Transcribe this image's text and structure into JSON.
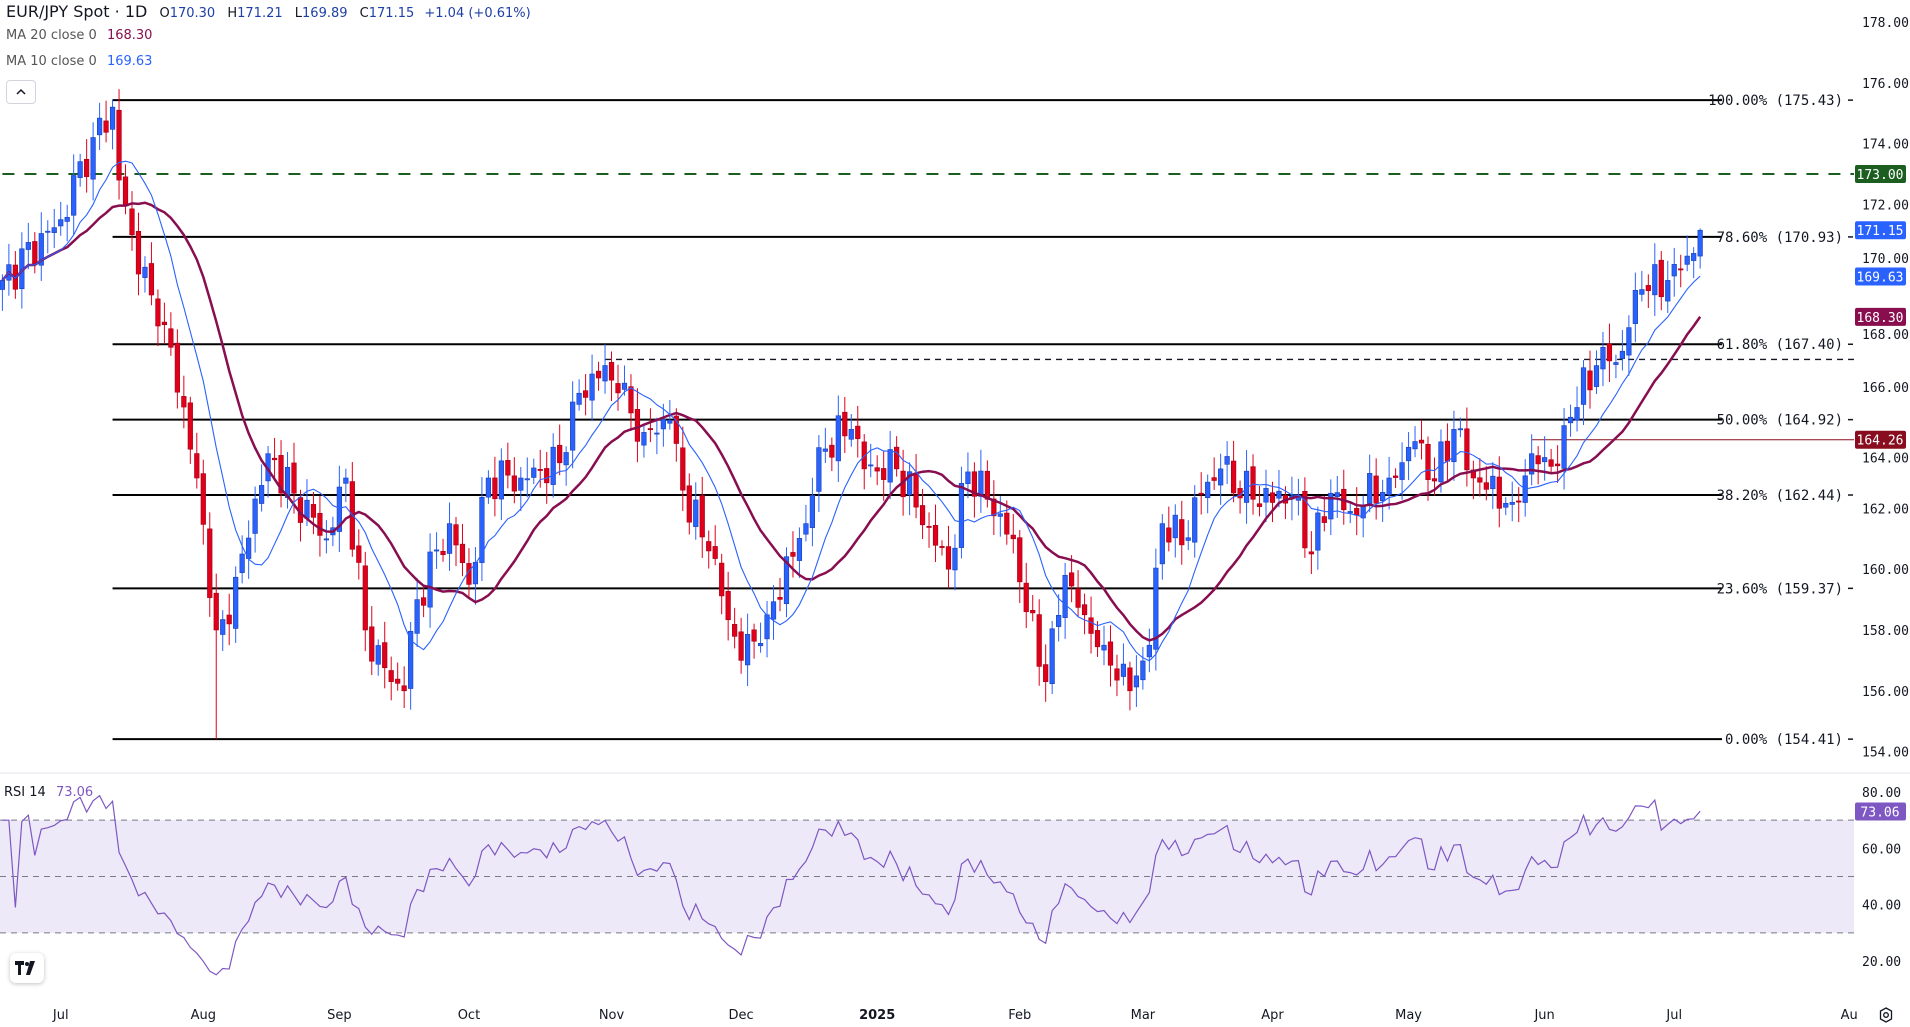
{
  "header": {
    "symbol_title": "EUR/JPY Spot · 1D",
    "open_label": "O",
    "open": "170.30",
    "high_label": "H",
    "high": "171.21",
    "low_label": "L",
    "low": "169.89",
    "close_label": "C",
    "close": "171.15",
    "change": "+1.04 (+0.61%)"
  },
  "indicators": {
    "ma20": {
      "label": "MA 20 close 0",
      "value": "168.30",
      "color": "#880e4f"
    },
    "ma10": {
      "label": "MA 10 close 0",
      "value": "169.63",
      "color": "#2962ff"
    },
    "rsi": {
      "label": "RSI 14",
      "value": "73.06",
      "color": "#7e57c2"
    }
  },
  "logo_text": "TV",
  "icons": {
    "collapse": "chevron-up-icon",
    "settings": "gear-icon",
    "logo": "tradingview-logo-icon"
  },
  "chart_data": {
    "type": "candlestick",
    "title": "EUR/JPY Spot · 1D",
    "ylim": [
      153.2,
      178.6
    ],
    "y_ticks": [
      "178.00",
      "176.00",
      "174.00",
      "172.00",
      "170.00",
      "168.00",
      "166.00",
      "164.00",
      "162.00",
      "160.00",
      "158.00",
      "156.00",
      "154.00"
    ],
    "y_tick_values": [
      178,
      176,
      174,
      172,
      170,
      168,
      166,
      164,
      162,
      160,
      158,
      156,
      154
    ],
    "x_ticks": [
      {
        "label": "Jul",
        "index": 9
      },
      {
        "label": "Aug",
        "index": 31
      },
      {
        "label": "Sep",
        "index": 52
      },
      {
        "label": "Oct",
        "index": 72
      },
      {
        "label": "Nov",
        "index": 94
      },
      {
        "label": "Dec",
        "index": 114
      },
      {
        "label": "2025",
        "index": 135
      },
      {
        "label": "Feb",
        "index": 157
      },
      {
        "label": "Mar",
        "index": 176
      },
      {
        "label": "Apr",
        "index": 196
      },
      {
        "label": "May",
        "index": 217
      },
      {
        "label": "Jun",
        "index": 238
      },
      {
        "label": "Jul",
        "index": 258
      },
      {
        "label": "Au",
        "index": 285
      }
    ],
    "candle_count": 263,
    "close_anchors": [
      [
        0,
        169.5
      ],
      [
        9,
        171.5
      ],
      [
        14,
        174.2
      ],
      [
        17,
        175.2
      ],
      [
        18,
        172.8
      ],
      [
        20,
        171.0
      ],
      [
        24,
        168.0
      ],
      [
        26,
        167.3
      ],
      [
        30,
        163.0
      ],
      [
        33,
        158.0
      ],
      [
        35,
        158.2
      ],
      [
        37,
        160.5
      ],
      [
        41,
        163.8
      ],
      [
        45,
        162.5
      ],
      [
        50,
        161.0
      ],
      [
        53,
        163.0
      ],
      [
        56,
        158.0
      ],
      [
        60,
        156.3
      ],
      [
        62,
        156.0
      ],
      [
        64,
        159.0
      ],
      [
        69,
        161.5
      ],
      [
        72,
        159.5
      ],
      [
        75,
        163.0
      ],
      [
        80,
        163.0
      ],
      [
        86,
        163.5
      ],
      [
        88,
        165.5
      ],
      [
        93,
        166.7
      ],
      [
        95,
        165.8
      ],
      [
        99,
        164.5
      ],
      [
        103,
        164.9
      ],
      [
        105,
        162.6
      ],
      [
        109,
        160.6
      ],
      [
        114,
        157.0
      ],
      [
        118,
        158.5
      ],
      [
        124,
        161.5
      ],
      [
        126,
        164.0
      ],
      [
        131,
        164.6
      ],
      [
        133,
        163.3
      ],
      [
        138,
        163.3
      ],
      [
        143,
        161.4
      ],
      [
        146,
        160.0
      ],
      [
        149,
        163.2
      ],
      [
        152,
        162.3
      ],
      [
        156,
        161.0
      ],
      [
        158,
        158.6
      ],
      [
        161,
        156.3
      ],
      [
        164,
        159.8
      ],
      [
        167,
        158.5
      ],
      [
        170,
        157.5
      ],
      [
        174,
        156.0
      ],
      [
        177,
        157.5
      ],
      [
        179,
        161.5
      ],
      [
        182,
        160.8
      ],
      [
        185,
        162.5
      ],
      [
        188,
        163.3
      ],
      [
        193,
        162.3
      ],
      [
        199,
        162.4
      ],
      [
        202,
        160.5
      ],
      [
        205,
        162.5
      ],
      [
        208,
        161.9
      ],
      [
        214,
        163.0
      ],
      [
        218,
        164.2
      ],
      [
        221,
        162.9
      ],
      [
        224,
        164.6
      ],
      [
        227,
        163.0
      ],
      [
        233,
        162.2
      ],
      [
        236,
        163.8
      ],
      [
        240,
        163.4
      ],
      [
        242,
        165.0
      ],
      [
        247,
        167.3
      ],
      [
        249,
        166.8
      ],
      [
        253,
        169.2
      ],
      [
        257,
        169.5
      ],
      [
        260,
        170.3
      ],
      [
        262,
        171.15
      ]
    ],
    "last_candle": {
      "open": 170.3,
      "high": 171.21,
      "low": 169.89,
      "close": 171.15
    },
    "special_wicks": [
      {
        "index": 33,
        "low": 154.41
      }
    ],
    "series": [
      {
        "name": "MA 20 close 0",
        "period": 20,
        "last": 168.3
      },
      {
        "name": "MA 10 close 0",
        "period": 10,
        "last": 169.63
      }
    ],
    "fib_levels": [
      {
        "label": "100.00% (175.43)",
        "value": 175.43
      },
      {
        "label": "78.60% (170.93)",
        "value": 170.93
      },
      {
        "label": "61.80% (167.40)",
        "value": 167.4
      },
      {
        "label": "50.00% (164.92)",
        "value": 164.92
      },
      {
        "label": "38.20% (162.44)",
        "value": 162.44
      },
      {
        "label": "23.60% (159.37)",
        "value": 159.37
      },
      {
        "label": "0.00% (154.41)",
        "value": 154.41
      }
    ],
    "fib_start_index": 17,
    "horizontal_lines": [
      {
        "name": "resistance-173",
        "value": 173.0,
        "style": "dashed",
        "color": "#1b5e20",
        "badge": "173.00",
        "start_index": 0
      },
      {
        "name": "prior-high",
        "value": 166.9,
        "style": "dotted",
        "color": "#131722",
        "start_index": 93
      },
      {
        "name": "support-164",
        "value": 164.26,
        "style": "solid",
        "color": "#880e1f",
        "badge": "164.26",
        "start_index": 236
      }
    ],
    "price_badges": [
      {
        "text": "171.15",
        "value": 171.15,
        "color": "#2962ff"
      },
      {
        "text": "169.63",
        "value": 169.63,
        "color": "#2962ff"
      },
      {
        "text": "168.30",
        "value": 168.3,
        "color": "#880e4f"
      }
    ],
    "colors": {
      "up": "#2962ff",
      "down": "#e0001a",
      "rsi_band": "#ede9f8"
    },
    "rsi": {
      "period": 14,
      "last": 73.06,
      "ylim": [
        13,
        84
      ],
      "y_ticks": [
        "80.00",
        "60.00",
        "40.00",
        "20.00"
      ],
      "y_tick_values": [
        80,
        60,
        40,
        20
      ],
      "levels": [
        70,
        50,
        30
      ]
    }
  }
}
